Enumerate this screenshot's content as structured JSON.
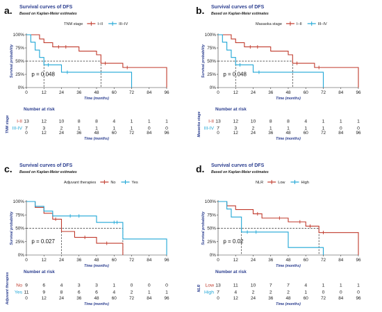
{
  "colors": {
    "group1": "#c0392b",
    "group2": "#1ea6d6",
    "title": "#2a3d8f"
  },
  "chart_data": [
    {
      "type": "line",
      "panel_label": "a.",
      "title": "Survival curves of DFS",
      "subtitle": "Based on Kaplan-Meier estimates",
      "legend_title": "TNM stage",
      "xlabel": "Time (months)",
      "ylabel": "Survival probability",
      "risk_ylabel": "TNM stage",
      "risk_title": "Number at risk",
      "xlim": [
        0,
        96
      ],
      "ylim": [
        0,
        100
      ],
      "x_ticks": [
        "0",
        "12",
        "24",
        "36",
        "48",
        "60",
        "72",
        "84",
        "96"
      ],
      "y_ticks": [
        "0%",
        "25%",
        "50%",
        "75%",
        "100%"
      ],
      "median_line": 50,
      "medians": [
        51,
        12
      ],
      "p_value": "p = 0.048",
      "series": [
        {
          "name": "I–II",
          "risk_label": "I-II",
          "steps": [
            [
              0,
              100
            ],
            [
              9,
              92
            ],
            [
              12,
              85
            ],
            [
              18,
              77
            ],
            [
              30,
              77
            ],
            [
              36,
              69
            ],
            [
              48,
              62
            ],
            [
              51,
              46
            ],
            [
              66,
              38
            ],
            [
              96,
              0
            ]
          ],
          "censor": [
            [
              22,
              77
            ],
            [
              27,
              77
            ],
            [
              54,
              46
            ],
            [
              69,
              38
            ]
          ],
          "risk": [
            "13",
            "12",
            "10",
            "8",
            "8",
            "4",
            "1",
            "1",
            "1"
          ]
        },
        {
          "name": "III–IV",
          "risk_label": "III-IV",
          "steps": [
            [
              0,
              100
            ],
            [
              3,
              86
            ],
            [
              6,
              71
            ],
            [
              9,
              57
            ],
            [
              12,
              43
            ],
            [
              24,
              29
            ],
            [
              72,
              0
            ]
          ],
          "censor": [
            [
              15,
              43
            ],
            [
              28,
              29
            ]
          ],
          "risk": [
            "7",
            "3",
            "2",
            "1",
            "1",
            "1",
            "1",
            "0",
            "0"
          ]
        }
      ]
    },
    {
      "type": "line",
      "panel_label": "b.",
      "title": "Survival curves of DFS",
      "subtitle": "Based on Kaplan-Meier estimates",
      "legend_title": "Masaoka stage",
      "xlabel": "Time (months)",
      "ylabel": "Survival probability",
      "risk_ylabel": "Masaoka stage",
      "risk_title": "Number at risk",
      "xlim": [
        0,
        96
      ],
      "ylim": [
        0,
        100
      ],
      "x_ticks": [
        "0",
        "12",
        "24",
        "36",
        "48",
        "60",
        "72",
        "84",
        "96"
      ],
      "y_ticks": [
        "0%",
        "25%",
        "50%",
        "75%",
        "100%"
      ],
      "median_line": 50,
      "medians": [
        51,
        12
      ],
      "p_value": "p = 0.048",
      "series": [
        {
          "name": "I–II",
          "risk_label": "I-II",
          "steps": [
            [
              0,
              100
            ],
            [
              9,
              92
            ],
            [
              12,
              85
            ],
            [
              18,
              77
            ],
            [
              30,
              77
            ],
            [
              36,
              69
            ],
            [
              48,
              62
            ],
            [
              51,
              46
            ],
            [
              66,
              38
            ],
            [
              96,
              0
            ]
          ],
          "censor": [
            [
              22,
              77
            ],
            [
              27,
              77
            ],
            [
              54,
              46
            ],
            [
              69,
              38
            ]
          ],
          "risk": [
            "13",
            "12",
            "10",
            "8",
            "8",
            "4",
            "1",
            "1",
            "1"
          ]
        },
        {
          "name": "III–IV",
          "risk_label": "III-IV",
          "steps": [
            [
              0,
              100
            ],
            [
              3,
              86
            ],
            [
              6,
              71
            ],
            [
              9,
              57
            ],
            [
              12,
              43
            ],
            [
              24,
              29
            ],
            [
              72,
              0
            ]
          ],
          "censor": [
            [
              15,
              43
            ],
            [
              28,
              29
            ]
          ],
          "risk": [
            "7",
            "3",
            "2",
            "1",
            "1",
            "1",
            "1",
            "0",
            "0"
          ]
        }
      ]
    },
    {
      "type": "line",
      "panel_label": "c.",
      "title": "Survival curves of DFS",
      "subtitle": "Based on Kaplan-Meier estimates",
      "legend_title": "Adjuvant therapies",
      "xlabel": "Time (months)",
      "ylabel": "Survival probability",
      "risk_ylabel": "Adjuvant therapies",
      "risk_title": "Number at risk",
      "xlim": [
        0,
        96
      ],
      "ylim": [
        0,
        100
      ],
      "x_ticks": [
        "0",
        "12",
        "24",
        "36",
        "48",
        "60",
        "72",
        "84",
        "96"
      ],
      "y_ticks": [
        "0%",
        "25%",
        "50%",
        "75%",
        "100%"
      ],
      "median_line": 50,
      "medians": [
        24,
        66
      ],
      "p_value": "p = 0.027",
      "series": [
        {
          "name": "No",
          "risk_label": "No",
          "steps": [
            [
              0,
              100
            ],
            [
              6,
              89
            ],
            [
              12,
              78
            ],
            [
              18,
              67
            ],
            [
              24,
              44
            ],
            [
              33,
              33
            ],
            [
              48,
              22
            ],
            [
              66,
              0
            ]
          ],
          "censor": [
            [
              20,
              67
            ],
            [
              40,
              33
            ],
            [
              55,
              22
            ]
          ],
          "risk": [
            "9",
            "6",
            "4",
            "3",
            "3",
            "1",
            "0",
            "0",
            "0"
          ]
        },
        {
          "name": "Yes",
          "risk_label": "Yes",
          "steps": [
            [
              0,
              100
            ],
            [
              6,
              91
            ],
            [
              12,
              82
            ],
            [
              18,
              73
            ],
            [
              48,
              61
            ],
            [
              66,
              30
            ],
            [
              96,
              0
            ]
          ],
          "censor": [
            [
              30,
              73
            ],
            [
              36,
              73
            ],
            [
              60,
              61
            ],
            [
              62,
              61
            ]
          ],
          "risk": [
            "11",
            "9",
            "8",
            "6",
            "6",
            "4",
            "2",
            "1",
            "1"
          ]
        }
      ]
    },
    {
      "type": "line",
      "panel_label": "d.",
      "title": "Survival curves of DFS",
      "subtitle": "Based on Kaplan-Meier estimates",
      "legend_title": "NLR",
      "xlabel": "Time (months)",
      "ylabel": "Survival probability",
      "risk_ylabel": "NLR",
      "risk_title": "Number at risk",
      "xlim": [
        0,
        96
      ],
      "ylim": [
        0,
        100
      ],
      "x_ticks": [
        "0",
        "12",
        "24",
        "36",
        "48",
        "60",
        "72",
        "84",
        "96"
      ],
      "y_ticks": [
        "0%",
        "25%",
        "50%",
        "75%",
        "100%"
      ],
      "median_line": 50,
      "medians": [
        69,
        16
      ],
      "p_value": "p = 0.02",
      "series": [
        {
          "name": "Low",
          "risk_label": "Low",
          "steps": [
            [
              0,
              100
            ],
            [
              6,
              92
            ],
            [
              12,
              85
            ],
            [
              24,
              77
            ],
            [
              30,
              69
            ],
            [
              48,
              62
            ],
            [
              60,
              54
            ],
            [
              69,
              42
            ],
            [
              96,
              0
            ]
          ],
          "censor": [
            [
              27,
              77
            ],
            [
              42,
              69
            ],
            [
              56,
              62
            ],
            [
              63,
              54
            ],
            [
              72,
              42
            ]
          ],
          "risk": [
            "13",
            "11",
            "10",
            "7",
            "7",
            "4",
            "1",
            "1",
            "1"
          ]
        },
        {
          "name": "High",
          "risk_label": "High",
          "steps": [
            [
              0,
              100
            ],
            [
              6,
              86
            ],
            [
              9,
              71
            ],
            [
              16,
              43
            ],
            [
              24,
              43
            ],
            [
              48,
              14
            ],
            [
              72,
              0
            ]
          ],
          "censor": [
            [
              20,
              43
            ],
            [
              26,
              43
            ]
          ],
          "risk": [
            "7",
            "4",
            "2",
            "2",
            "2",
            "1",
            "0",
            "0",
            "0"
          ]
        }
      ]
    }
  ]
}
